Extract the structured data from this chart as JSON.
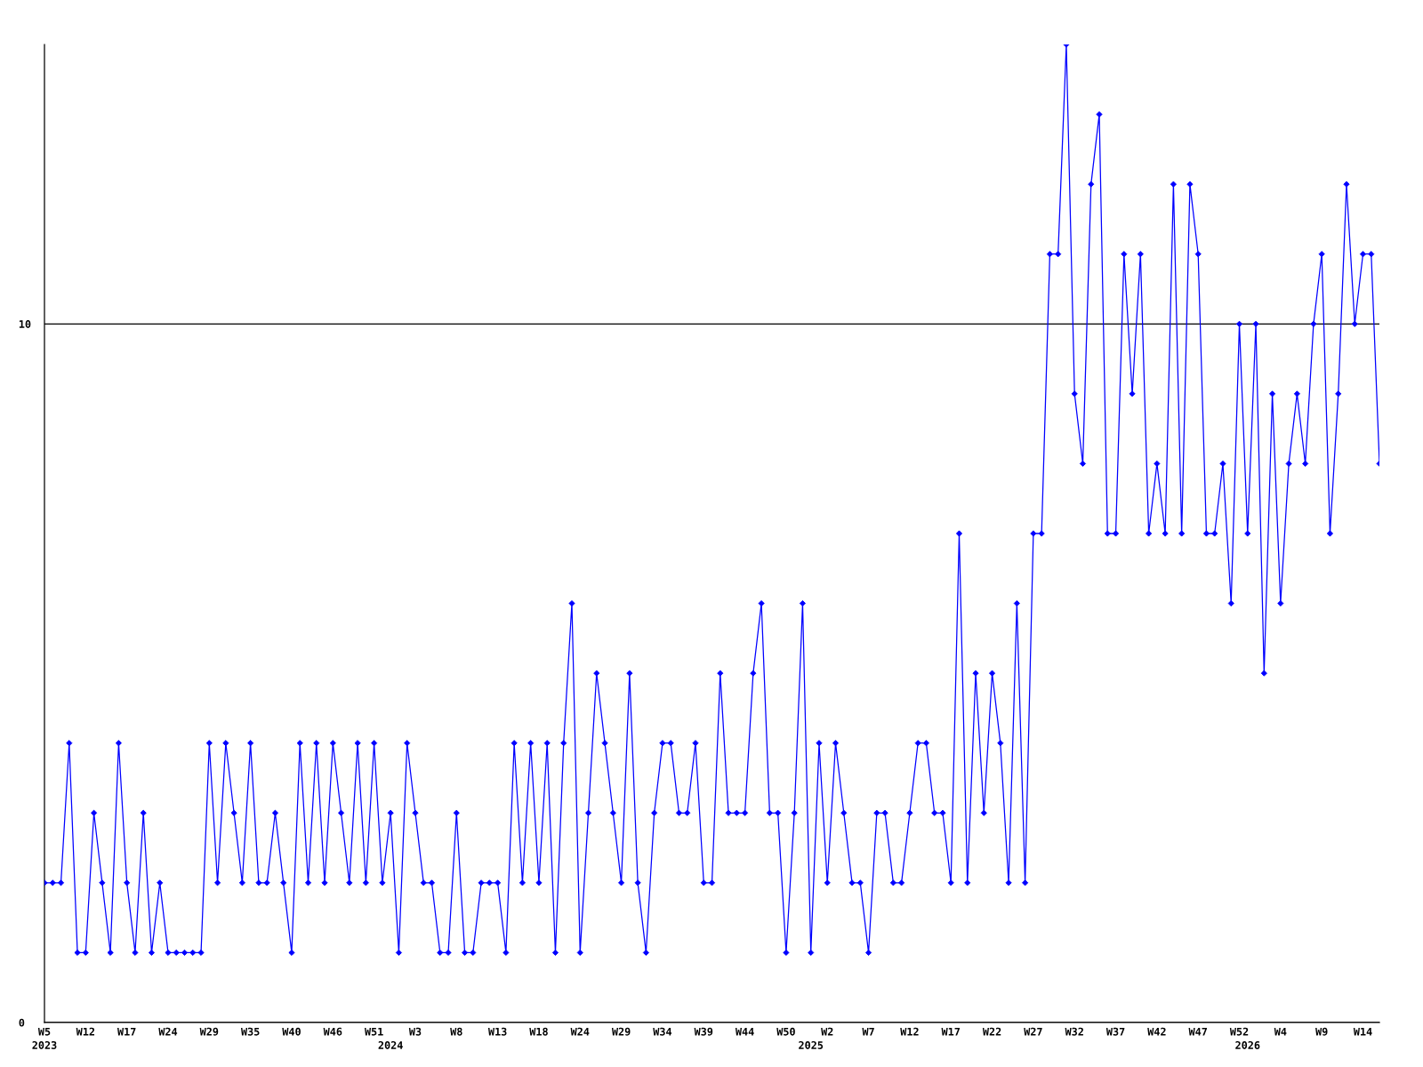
{
  "chart_data": {
    "type": "line",
    "categories": [
      "W5\n2023",
      null,
      null,
      null,
      null,
      "W12",
      null,
      null,
      null,
      null,
      "W17",
      null,
      null,
      null,
      null,
      "W24",
      null,
      null,
      null,
      null,
      "W29",
      null,
      null,
      null,
      null,
      "W35",
      null,
      null,
      null,
      null,
      "W40",
      null,
      null,
      null,
      null,
      "W46",
      null,
      null,
      null,
      null,
      "W51",
      null,
      "\n2024",
      null,
      null,
      "W3",
      null,
      null,
      null,
      null,
      "W8",
      null,
      null,
      null,
      null,
      "W13",
      null,
      null,
      null,
      null,
      "W18",
      null,
      null,
      null,
      null,
      "W24",
      null,
      null,
      null,
      null,
      "W29",
      null,
      null,
      null,
      null,
      "W34",
      null,
      null,
      null,
      null,
      "W39",
      null,
      null,
      null,
      null,
      "W44",
      null,
      null,
      null,
      null,
      "W50",
      null,
      null,
      "\n2025",
      null,
      "W2",
      null,
      null,
      null,
      null,
      "W7",
      null,
      null,
      null,
      null,
      "W12",
      null,
      null,
      null,
      null,
      "W17",
      null,
      null,
      null,
      null,
      "W22",
      null,
      null,
      null,
      null,
      "W27",
      null,
      null,
      null,
      null,
      "W32",
      null,
      null,
      null,
      null,
      "W37",
      null,
      null,
      null,
      null,
      "W42",
      null,
      null,
      null,
      null,
      "W47",
      null,
      null,
      null,
      null,
      "W52",
      "\n2026",
      null,
      null,
      null,
      "W4",
      null,
      null,
      null,
      null,
      "W9",
      null,
      null,
      null,
      null,
      "W14",
      null,
      null
    ],
    "values": [
      2,
      2,
      2,
      4,
      1,
      1,
      3,
      2,
      1,
      4,
      2,
      1,
      3,
      1,
      2,
      1,
      1,
      1,
      1,
      1,
      4,
      2,
      4,
      3,
      2,
      4,
      2,
      2,
      3,
      2,
      1,
      4,
      2,
      4,
      2,
      4,
      3,
      2,
      4,
      2,
      4,
      2,
      3,
      1,
      4,
      3,
      2,
      2,
      1,
      1,
      3,
      1,
      1,
      2,
      2,
      2,
      1,
      4,
      2,
      4,
      2,
      4,
      1,
      4,
      6,
      1,
      3,
      5,
      4,
      3,
      2,
      5,
      2,
      1,
      3,
      4,
      4,
      3,
      3,
      4,
      2,
      2,
      5,
      3,
      3,
      3,
      5,
      6,
      3,
      3,
      1,
      3,
      6,
      1,
      4,
      2,
      4,
      3,
      2,
      2,
      1,
      3,
      3,
      2,
      2,
      3,
      4,
      4,
      3,
      3,
      2,
      7,
      2,
      5,
      3,
      5,
      4,
      2,
      6,
      2,
      7,
      7,
      11,
      11,
      14,
      9,
      8,
      12,
      13,
      7,
      7,
      11,
      9,
      11,
      7,
      8,
      7,
      12,
      7,
      12,
      11,
      7,
      7,
      8,
      6,
      10,
      7,
      10,
      5,
      9,
      6,
      8,
      9,
      8,
      10,
      11,
      7,
      9,
      12,
      10,
      11,
      11,
      8
    ],
    "color": "#0000ff",
    "ylim": [
      0,
      14
    ],
    "yticks": [
      0,
      10
    ],
    "grid": "y",
    "marker": "diamond",
    "line_style": "solid"
  }
}
